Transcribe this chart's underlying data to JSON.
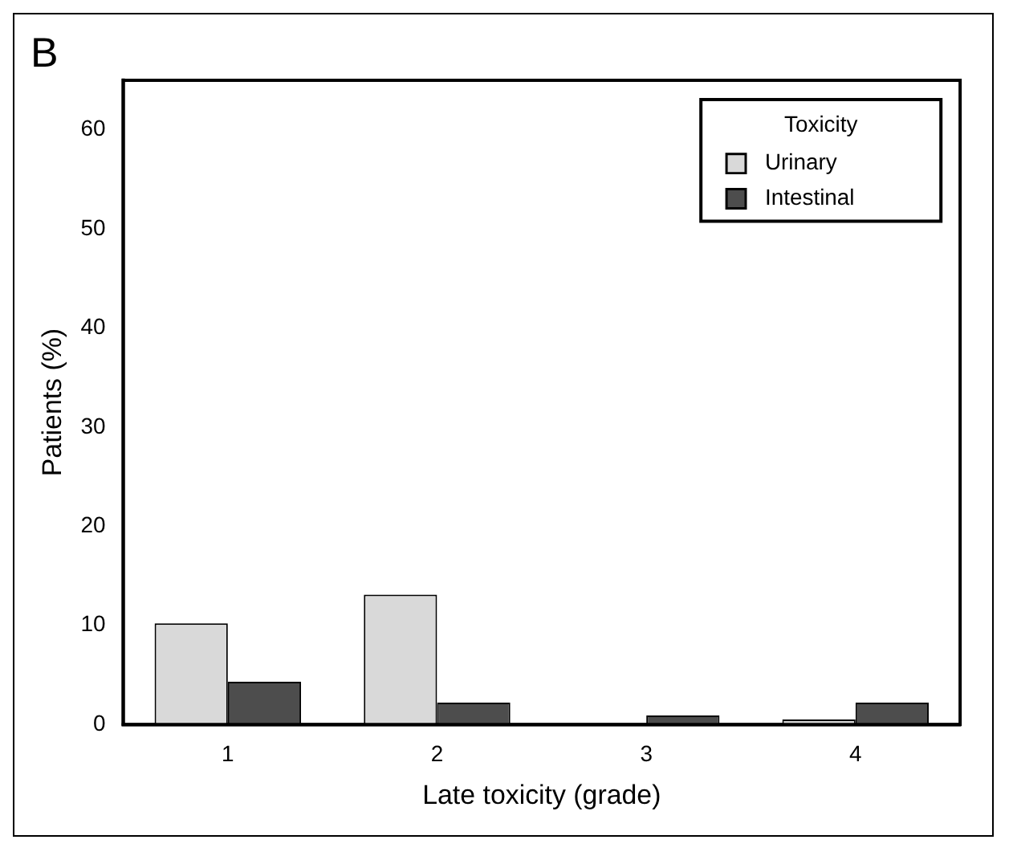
{
  "chart_data": {
    "type": "bar",
    "title": "B",
    "xlabel": "Late toxicity (grade)",
    "ylabel": "Patients (%)",
    "legend_title": "Toxicity",
    "categories": [
      "1",
      "2",
      "3",
      "4"
    ],
    "series": [
      {
        "name": "Urinary",
        "color": "#d9d9d9",
        "values": [
          10.2,
          13.1,
          0,
          0.5
        ]
      },
      {
        "name": "Intestinal",
        "color": "#4d4d4d",
        "values": [
          4.3,
          2.2,
          0.9,
          2.2
        ]
      }
    ],
    "ylim": [
      0,
      65
    ],
    "yticks": [
      0,
      10,
      20,
      30,
      40,
      50,
      60
    ],
    "grid": false,
    "legend": "top right"
  }
}
